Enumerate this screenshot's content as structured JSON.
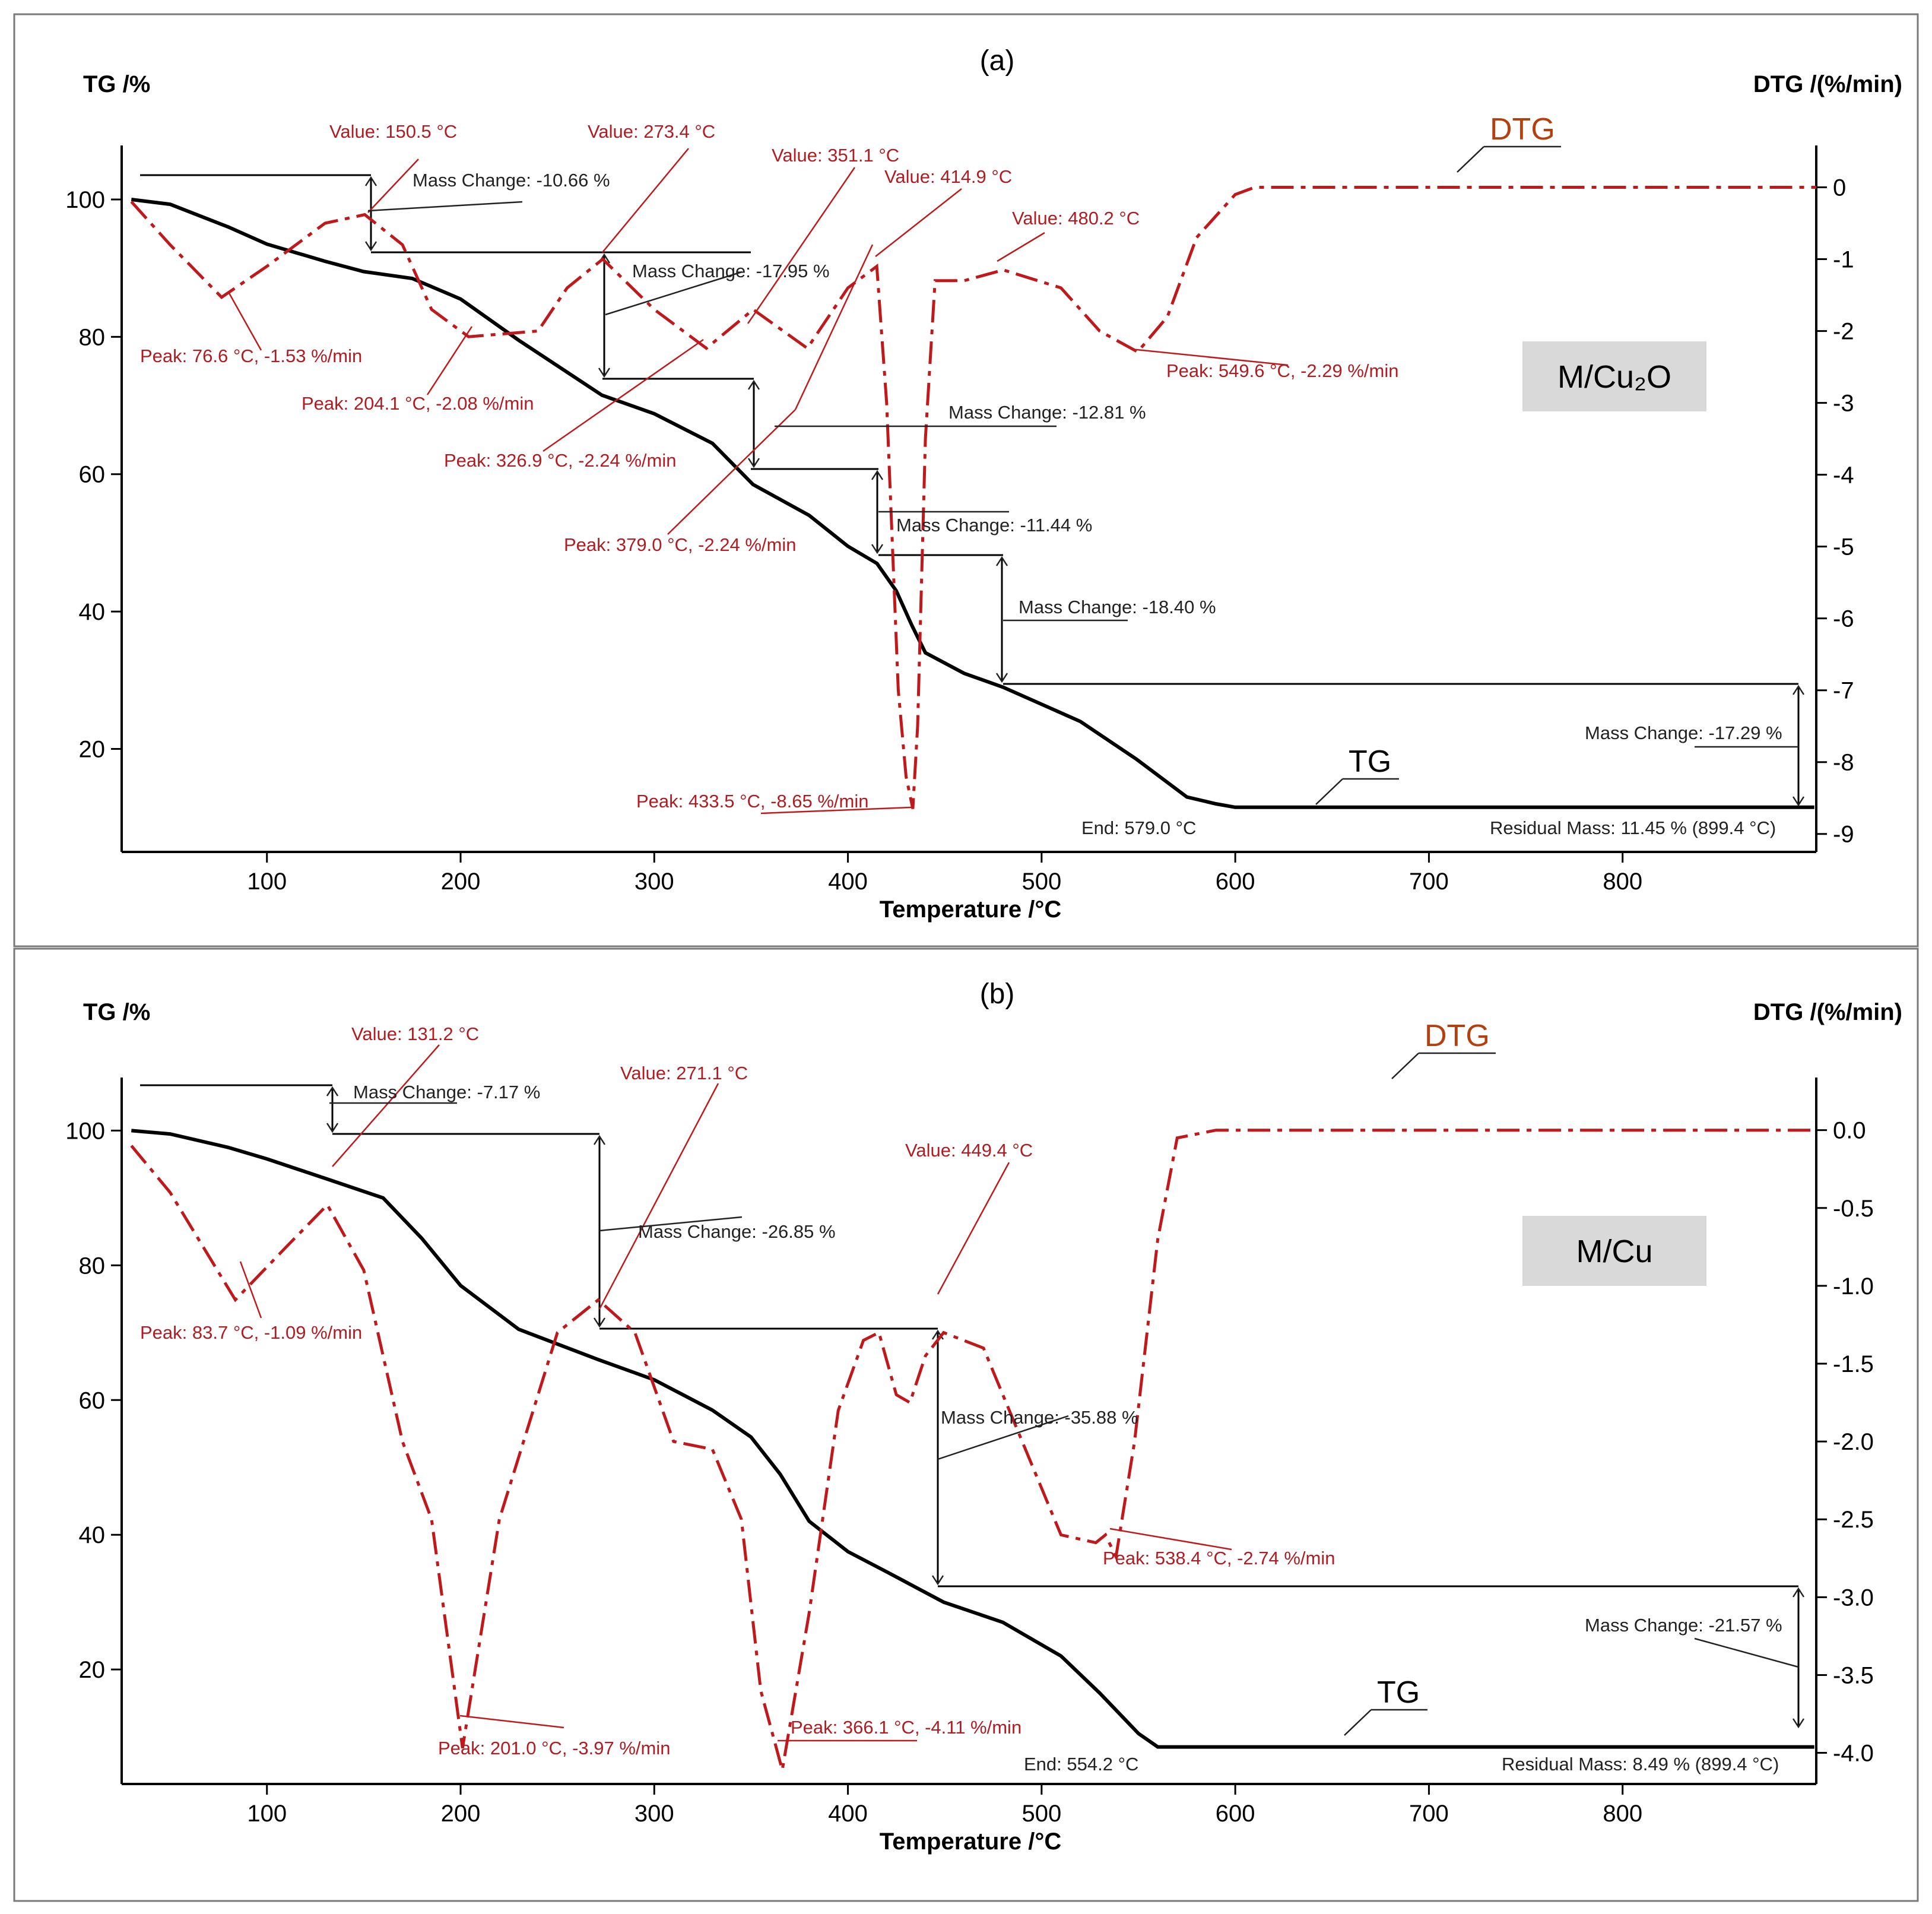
{
  "chart_data": [
    {
      "type": "line",
      "panel": "(a)",
      "sample_label": "M/Cu₂O",
      "xlabel": "Temperature /°C",
      "ylabel_left": "TG /%",
      "ylabel_right": "DTG /(%/min)",
      "xlim": [
        25,
        900
      ],
      "ylim_left": [
        5,
        107
      ],
      "ylim_right": [
        -9.25,
        0.5
      ],
      "xticks": [
        100,
        200,
        300,
        400,
        500,
        600,
        700,
        800
      ],
      "yticks_left": [
        20,
        40,
        60,
        80,
        100
      ],
      "yticks_right": [
        0,
        -1,
        -2,
        -3,
        -4,
        -5,
        -6,
        -7,
        -8,
        -9
      ],
      "curve_labels": {
        "tg": "TG",
        "dtg": "DTG"
      },
      "series": [
        {
          "name": "TG",
          "axis": "left",
          "x": [
            30,
            50,
            80,
            100,
            130,
            150,
            175,
            200,
            230,
            273,
            300,
            330,
            351,
            380,
            400,
            415,
            425,
            433,
            440,
            460,
            480,
            520,
            549,
            575,
            590,
            600,
            700,
            899
          ],
          "y": [
            100,
            99.3,
            96,
            93.5,
            91,
            89.5,
            88.5,
            85.5,
            79.5,
            71.5,
            68.8,
            64.5,
            58.5,
            54,
            49.5,
            47,
            43,
            38,
            34,
            31,
            29,
            24,
            18.5,
            13,
            12,
            11.5,
            11.5,
            11.5
          ]
        },
        {
          "name": "DTG",
          "axis": "right",
          "x": [
            30,
            50,
            76.6,
            100,
            130,
            150.5,
            170,
            185,
            204.1,
            240,
            255,
            273.4,
            300,
            326.9,
            351.1,
            379,
            400,
            414.9,
            420,
            426,
            430,
            433.5,
            436,
            440,
            445,
            460,
            480.2,
            510,
            530,
            549.6,
            565,
            580,
            600,
            610,
            900
          ],
          "y": [
            -0.2,
            -0.8,
            -1.53,
            -1.1,
            -0.5,
            -0.38,
            -0.8,
            -1.7,
            -2.08,
            -2.0,
            -1.4,
            -1.0,
            -1.7,
            -2.24,
            -1.7,
            -2.24,
            -1.4,
            -1.1,
            -3.0,
            -7.0,
            -8.2,
            -8.65,
            -7.5,
            -3.5,
            -1.3,
            -1.3,
            -1.15,
            -1.4,
            -2.0,
            -2.29,
            -1.8,
            -0.7,
            -0.1,
            0,
            0
          ]
        }
      ],
      "annotations": [
        {
          "text": "Value: 150.5 °C",
          "color": "red"
        },
        {
          "text": "Value: 273.4 °C",
          "color": "red"
        },
        {
          "text": "Value: 351.1 °C",
          "color": "red"
        },
        {
          "text": "Value: 414.9 °C",
          "color": "red"
        },
        {
          "text": "Value: 480.2 °C",
          "color": "red"
        },
        {
          "text": "Peak: 76.6 °C, -1.53 %/min",
          "color": "red"
        },
        {
          "text": "Peak: 204.1 °C, -2.08 %/min",
          "color": "red"
        },
        {
          "text": "Peak: 326.9 °C, -2.24 %/min",
          "color": "red"
        },
        {
          "text": "Peak: 379.0 °C, -2.24 %/min",
          "color": "red"
        },
        {
          "text": "Peak: 433.5 °C, -8.65 %/min",
          "color": "red"
        },
        {
          "text": "Peak: 549.6 °C, -2.29 %/min",
          "color": "red"
        },
        {
          "text": "Mass Change: -10.66 %",
          "color": "black"
        },
        {
          "text": "Mass Change: -17.95 %",
          "color": "black"
        },
        {
          "text": "Mass Change: -12.81 %",
          "color": "black"
        },
        {
          "text": "Mass Change: -11.44 %",
          "color": "black"
        },
        {
          "text": "Mass Change: -18.40 %",
          "color": "black"
        },
        {
          "text": "Mass Change: -17.29 %",
          "color": "black"
        },
        {
          "text": "End: 579.0 °C",
          "color": "black"
        },
        {
          "text": "Residual Mass: 11.45 % (899.4 °C)",
          "color": "black"
        }
      ]
    },
    {
      "type": "line",
      "panel": "(b)",
      "sample_label": "M/Cu",
      "xlabel": "Temperature /°C",
      "ylabel_left": "TG /%",
      "ylabel_right": "DTG /(%/min)",
      "xlim": [
        25,
        900
      ],
      "ylim_left": [
        3,
        107
      ],
      "ylim_right": [
        -4.2,
        0.3
      ],
      "xticks": [
        100,
        200,
        300,
        400,
        500,
        600,
        700,
        800
      ],
      "yticks_left": [
        20,
        40,
        60,
        80,
        100
      ],
      "yticks_right": [
        "0.0",
        "-0.5",
        "-1.0",
        "-1.5",
        "-2.0",
        "-2.5",
        "-3.0",
        "-3.5",
        "-4.0"
      ],
      "curve_labels": {
        "tg": "TG",
        "dtg": "DTG"
      },
      "series": [
        {
          "name": "TG",
          "axis": "left",
          "x": [
            30,
            50,
            80,
            100,
            131.2,
            160,
            180,
            200,
            230,
            271.1,
            300,
            330,
            350,
            365,
            380,
            400,
            420,
            449.4,
            480,
            510,
            530,
            550,
            560,
            600,
            899
          ],
          "y": [
            100,
            99.5,
            97.5,
            95.8,
            92.8,
            90,
            84,
            77,
            70.5,
            66,
            63,
            58.5,
            54.5,
            49,
            42,
            37.5,
            34.5,
            30,
            27,
            22,
            16.5,
            10.5,
            8.5,
            8.5,
            8.5
          ]
        },
        {
          "name": "DTG",
          "axis": "right",
          "x": [
            30,
            50,
            83.7,
            110,
            131.2,
            150,
            170,
            185,
            201,
            220,
            250,
            271.1,
            290,
            310,
            330,
            345,
            355,
            366.1,
            380,
            395,
            408,
            416,
            425,
            432,
            440,
            449.4,
            470,
            490,
            510,
            528,
            533,
            538.4,
            548,
            560,
            570,
            590,
            900
          ],
          "y": [
            -0.1,
            -0.4,
            -1.09,
            -0.75,
            -0.48,
            -0.9,
            -2.0,
            -2.5,
            -3.97,
            -2.5,
            -1.3,
            -1.09,
            -1.3,
            -2.0,
            -2.05,
            -2.5,
            -3.6,
            -4.11,
            -3.1,
            -1.8,
            -1.35,
            -1.3,
            -1.7,
            -1.75,
            -1.45,
            -1.3,
            -1.4,
            -2.0,
            -2.6,
            -2.65,
            -2.6,
            -2.74,
            -2.0,
            -0.7,
            -0.05,
            0,
            0
          ]
        }
      ],
      "annotations": [
        {
          "text": "Value: 131.2 °C",
          "color": "red"
        },
        {
          "text": "Value: 271.1 °C",
          "color": "red"
        },
        {
          "text": "Value: 449.4 °C",
          "color": "red"
        },
        {
          "text": "Peak: 83.7 °C, -1.09 %/min",
          "color": "red"
        },
        {
          "text": "Peak: 201.0 °C, -3.97 %/min",
          "color": "red"
        },
        {
          "text": "Peak: 366.1 °C, -4.11 %/min",
          "color": "red"
        },
        {
          "text": "Peak: 538.4 °C, -2.74 %/min",
          "color": "red"
        },
        {
          "text": "Mass Change: -7.17 %",
          "color": "black"
        },
        {
          "text": "Mass Change: -26.85 %",
          "color": "black"
        },
        {
          "text": "Mass Change: -35.88 %",
          "color": "black"
        },
        {
          "text": "Mass Change: -21.57 %",
          "color": "black"
        },
        {
          "text": "End: 554.2 °C",
          "color": "black"
        },
        {
          "text": "Residual Mass: 8.49 % (899.4 °C)",
          "color": "black"
        }
      ]
    }
  ],
  "colors": {
    "tg": "#000000",
    "dtg": "#c0191c",
    "annotation_red": "#b01c22",
    "curve_label_dtg": "#b5400f",
    "badge_bg": "#d9d9d9"
  }
}
